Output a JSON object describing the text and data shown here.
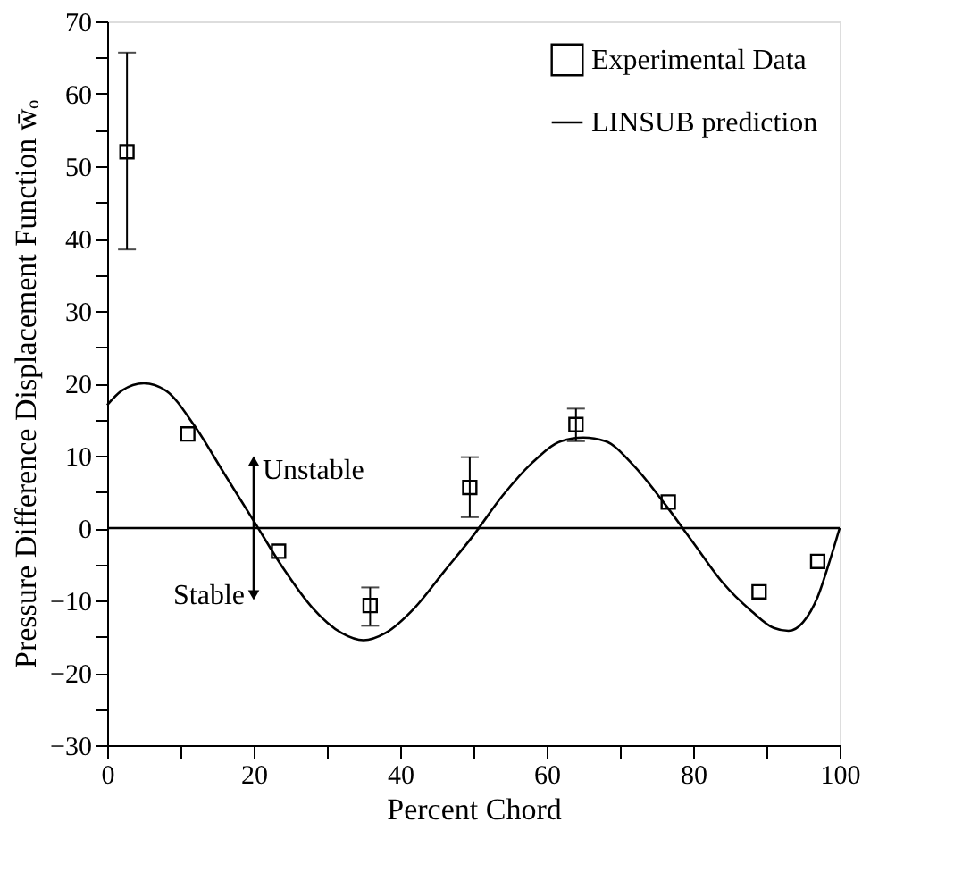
{
  "chart_data": {
    "type": "scatter",
    "xlabel": "Percent Chord",
    "ylabel": "Pressure Difference Displacement Function w̄ₒ",
    "xlim": [
      0,
      100
    ],
    "ylim": [
      -30,
      70
    ],
    "xticks": [
      0,
      {
        "value": 10,
        "label": null
      },
      20,
      {
        "value": 30,
        "label": null
      },
      40,
      {
        "value": 50,
        "label": null
      },
      60,
      {
        "value": 70,
        "label": null
      },
      80,
      {
        "value": 90,
        "label": null
      },
      100
    ],
    "yticks": [
      -30,
      {
        "value": -25,
        "label": null
      },
      -20,
      {
        "value": -15,
        "label": null
      },
      -10,
      {
        "value": -5,
        "label": null
      },
      0,
      {
        "value": 5,
        "label": null
      },
      10,
      {
        "value": 15,
        "label": null
      },
      20,
      {
        "value": 25,
        "label": null
      },
      30,
      {
        "value": 35,
        "label": null
      },
      40,
      {
        "value": 45,
        "label": null
      },
      50,
      {
        "value": 55,
        "label": null
      },
      60,
      {
        "value": 65,
        "label": null
      },
      70
    ],
    "grid": false,
    "legend": "top right",
    "series": [
      {
        "name": "Experimental Data",
        "marker": "square",
        "color": "#000000",
        "x": [
          2.7,
          11,
          23.4,
          35.9,
          49.5,
          64,
          76.6,
          89,
          97
        ],
        "values": [
          52,
          13,
          -3.2,
          -10.7,
          5.6,
          14.3,
          3.6,
          -8.8,
          -4.6
        ],
        "errors": [
          [
            38.5,
            65.7
          ],
          null,
          null,
          [
            -13.5,
            -8.2
          ],
          [
            1.5,
            9.8
          ],
          [
            12,
            16.5
          ],
          null,
          null,
          null
        ]
      },
      {
        "name": "LINSUB prediction",
        "type": "line",
        "line_style": "solid",
        "marker": "none",
        "color": "#000000",
        "x": [
          0,
          2,
          5,
          8,
          12,
          16,
          20,
          24,
          28,
          32,
          35,
          38,
          42,
          46,
          50,
          54,
          58,
          62,
          65,
          68,
          72,
          76,
          80,
          84,
          88,
          91,
          93,
          95,
          97,
          98.5,
          100
        ],
        "values": [
          17,
          19,
          20,
          19,
          14,
          7.5,
          1,
          -5.5,
          -11,
          -14.5,
          -15.5,
          -14.5,
          -11,
          -6,
          -1,
          4.5,
          9,
          12,
          12.5,
          12,
          8.5,
          3.5,
          -2,
          -7.5,
          -11.5,
          -13.8,
          -14.2,
          -13,
          -9.5,
          -5,
          0
        ]
      }
    ],
    "ref_lines": [
      {
        "axis": "y",
        "value": 0,
        "label": null,
        "color": "#000000",
        "line_style": "solid"
      }
    ],
    "annotations": [
      "Unstable",
      "Stable"
    ]
  }
}
